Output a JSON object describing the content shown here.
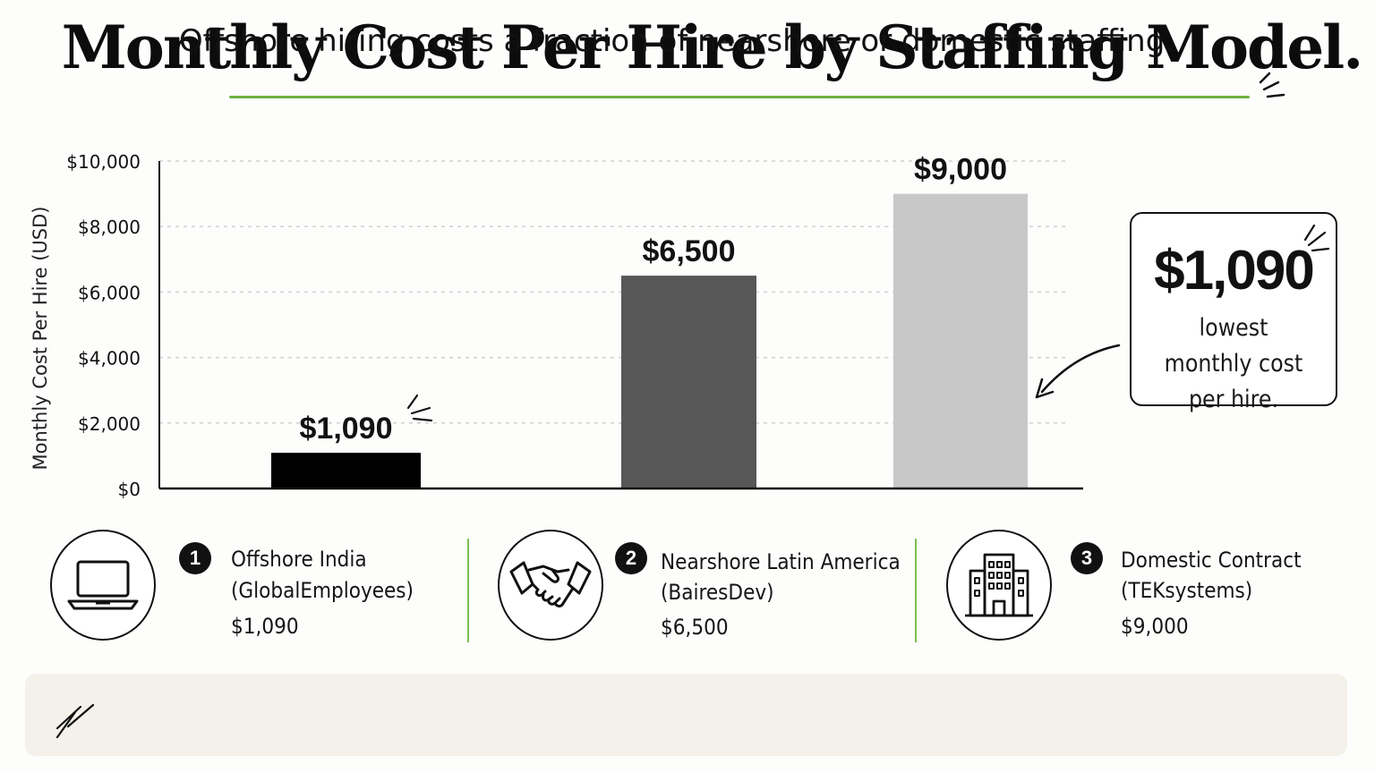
{
  "title": "Monthly Cost Per Hire by Staffing Model.",
  "chart_data": {
    "type": "bar",
    "ylabel": "Monthly Cost Per Hire (USD)",
    "ylim": [
      0,
      10000
    ],
    "yticks": [
      "$0",
      "$2,000",
      "$4,000",
      "$6,000",
      "$8,000",
      "$10,000"
    ],
    "grid": true,
    "series": [
      {
        "values": [
          1090,
          6500,
          9000
        ],
        "labels": [
          "$1,090",
          "$6,500",
          "$9,000"
        ],
        "colors": [
          "#000000",
          "#575757",
          "#c8c8c8"
        ]
      }
    ]
  },
  "callout": {
    "value": "$1,090",
    "text": "lowest monthly cost per hire."
  },
  "categories": [
    {
      "number": "1",
      "name": "Offshore India",
      "provider": "(GlobalEmployees)",
      "price": "$1,090",
      "icon": "laptop-icon"
    },
    {
      "number": "2",
      "name": "Nearshore Latin America",
      "provider": "(BairesDev)",
      "price": "$6,500",
      "icon": "handshake-icon"
    },
    {
      "number": "3",
      "name": "Domestic Contract",
      "provider": "(TEKsystems)",
      "price": "$9,000",
      "icon": "office-building-icon"
    }
  ],
  "footer": {
    "text": "Offshore hiring costs a fraction of nearshore or domestic staffing."
  },
  "colors": {
    "accent": "#6db33f",
    "footer_bg": "#f3f1ea"
  }
}
